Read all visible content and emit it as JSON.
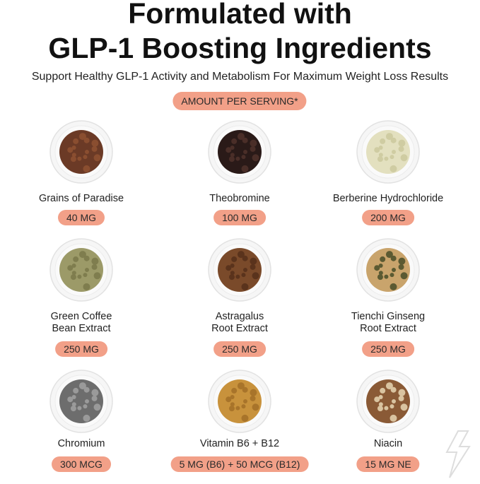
{
  "header": {
    "title_lines": [
      "Formulated with",
      "GLP-1 Boosting Ingredients"
    ],
    "subtitle": "Support Healthy GLP-1 Activity and Metabolism For Maximum Weight Loss Results",
    "badge": "AMOUNT PER SERVING*"
  },
  "items": [
    {
      "name_lines": [
        "Grains of Paradise"
      ],
      "amount": "40 MG"
    },
    {
      "name_lines": [
        "Theobromine"
      ],
      "amount": "100 MG"
    },
    {
      "name_lines": [
        "Berberine Hydrochloride"
      ],
      "amount": "200 MG"
    },
    {
      "name_lines": [
        "Green Coffee",
        "Bean Extract"
      ],
      "amount": "250 MG"
    },
    {
      "name_lines": [
        "Astragalus",
        "Root Extract"
      ],
      "amount": "250 MG"
    },
    {
      "name_lines": [
        "Tienchi Ginseng",
        "Root Extract"
      ],
      "amount": "250 MG"
    },
    {
      "name_lines": [
        "Chromium"
      ],
      "amount": "300 MCG"
    },
    {
      "name_lines": [
        "Vitamin B6 + B12"
      ],
      "amount": "5 MG (B6) + 50 MCG (B12)"
    },
    {
      "name_lines": [
        "Niacin"
      ],
      "amount": "15 MG NE"
    }
  ]
}
